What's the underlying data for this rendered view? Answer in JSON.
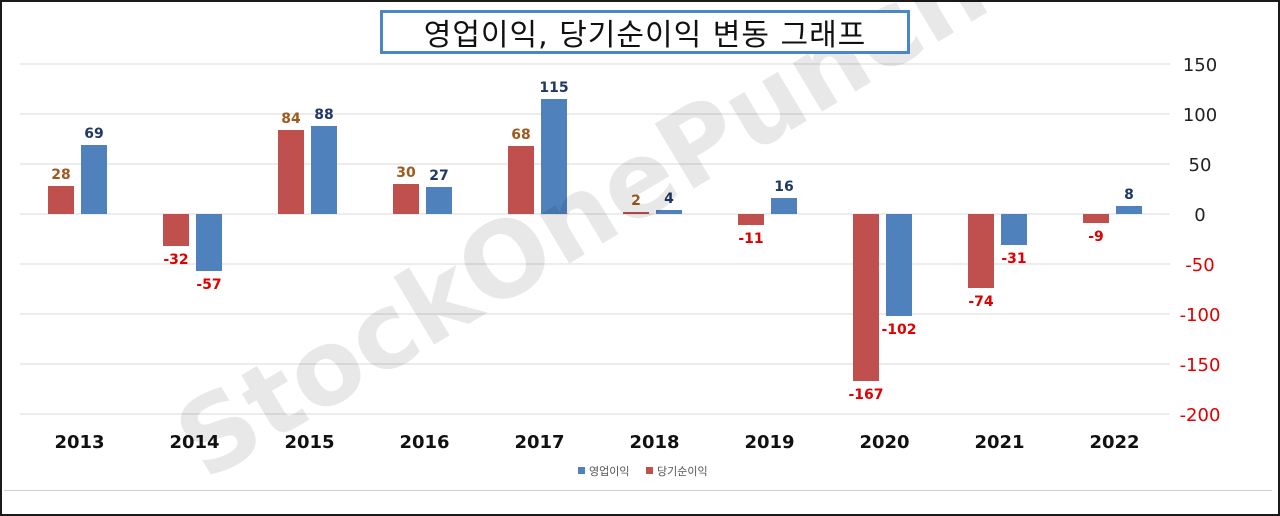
{
  "chart_data": {
    "type": "bar",
    "title": "영업이익, 당기순이익 변동 그래프",
    "categories": [
      "2013",
      "2014",
      "2015",
      "2016",
      "2017",
      "2018",
      "2019",
      "2020",
      "2021",
      "2022"
    ],
    "series": [
      {
        "name": "당기순이익",
        "color": "#c0504d",
        "values": [
          28,
          -32,
          84,
          30,
          68,
          2,
          -11,
          -167,
          -74,
          -9
        ],
        "labels": [
          "28",
          "-32",
          "84",
          "30",
          "68",
          "2",
          "-11",
          "-167",
          "-74",
          "-9"
        ]
      },
      {
        "name": "영업이익",
        "color": "#4f81bd",
        "values": [
          69,
          -57,
          88,
          27,
          115,
          4,
          16,
          -102,
          -31,
          8
        ],
        "labels": [
          "69",
          "-57",
          "88",
          "27",
          "115",
          "4",
          "16",
          "-102",
          "-31",
          "8"
        ]
      }
    ],
    "legend_order": [
      1,
      0
    ],
    "legend_position": "bottom",
    "ylim": [
      -200,
      150
    ],
    "yticks": [
      "150",
      "100",
      "50",
      "0",
      "-50",
      "-100",
      "-150",
      "-200"
    ],
    "ytick_values": [
      150,
      100,
      50,
      0,
      -50,
      -100,
      -150,
      -200
    ],
    "y_axis_side": "right",
    "grid": true,
    "label_colors": {
      "positive_red_series": "#9c5a1f",
      "positive_blue_series": "#1f3864",
      "negative": "#e00000"
    }
  },
  "watermark": "StockOnePunch"
}
